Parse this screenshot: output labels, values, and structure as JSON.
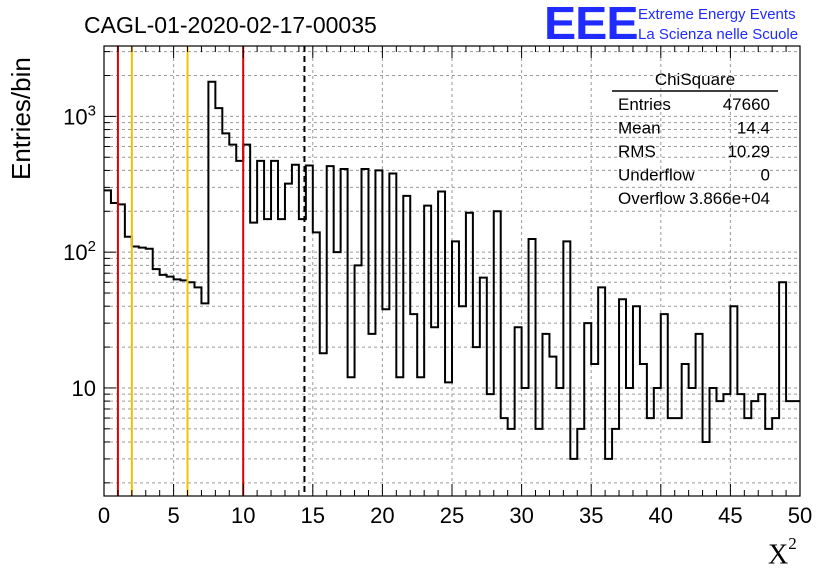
{
  "logo": {
    "mark": "EEE",
    "line1": "Extreme Energy Events",
    "line2": "La Scienza nelle Scuole"
  },
  "chart_data": {
    "type": "histogram",
    "title": "CAGL-01-2020-02-17-00035",
    "xlabel": "X",
    "xlabel_superscript": "2",
    "ylabel": "Entries/bin",
    "yscale": "log",
    "xlim": [
      0,
      50
    ],
    "ylim": [
      1.6,
      3300
    ],
    "grid": true,
    "x_ticks": [
      0,
      5,
      10,
      15,
      20,
      25,
      30,
      35,
      40,
      45,
      50
    ],
    "y_tick_labels": [
      {
        "value": 10,
        "label": "10"
      },
      {
        "value": 100,
        "label": "10^2"
      },
      {
        "value": 1000,
        "label": "10^3"
      }
    ],
    "bin_width": 0.5,
    "bin_start": 0,
    "values": [
      285,
      230,
      225,
      130,
      110,
      108,
      106,
      75,
      68,
      66,
      63,
      62,
      60,
      55,
      42,
      1800,
      1150,
      750,
      620,
      470,
      620,
      165,
      470,
      175,
      470,
      175,
      320,
      440,
      175,
      435,
      140,
      18,
      430,
      100,
      410,
      12,
      80,
      410,
      25,
      400,
      38,
      380,
      12,
      260,
      35,
      12,
      220,
      28,
      280,
      11,
      120,
      40,
      195,
      20,
      65,
      9,
      200,
      6,
      5,
      28,
      10,
      125,
      5,
      25,
      17,
      10,
      120,
      3,
      5,
      30,
      15,
      55,
      3,
      5,
      45,
      10,
      40,
      15,
      6,
      10,
      35,
      6,
      6,
      15,
      10,
      25,
      4,
      10,
      8,
      9,
      40,
      9,
      6,
      8,
      9,
      5,
      6,
      60,
      8,
      8
    ],
    "vertical_lines": [
      {
        "x": 1.0,
        "color": "#e00000",
        "style": "solid"
      },
      {
        "x": 2.0,
        "color": "#f2c200",
        "style": "solid"
      },
      {
        "x": 6.0,
        "color": "#f2c200",
        "style": "solid"
      },
      {
        "x": 10.0,
        "color": "#e00000",
        "style": "solid"
      },
      {
        "x": 14.4,
        "color": "#000000",
        "style": "dashed"
      }
    ],
    "stats_box": {
      "title": "ChiSquare",
      "rows": [
        {
          "label": "Entries",
          "value": "47660"
        },
        {
          "label": "Mean",
          "value": "14.4"
        },
        {
          "label": "RMS",
          "value": "10.29"
        },
        {
          "label": "Underflow",
          "value": "0"
        },
        {
          "label": "Overflow",
          "value": "3.866e+04"
        }
      ]
    }
  }
}
